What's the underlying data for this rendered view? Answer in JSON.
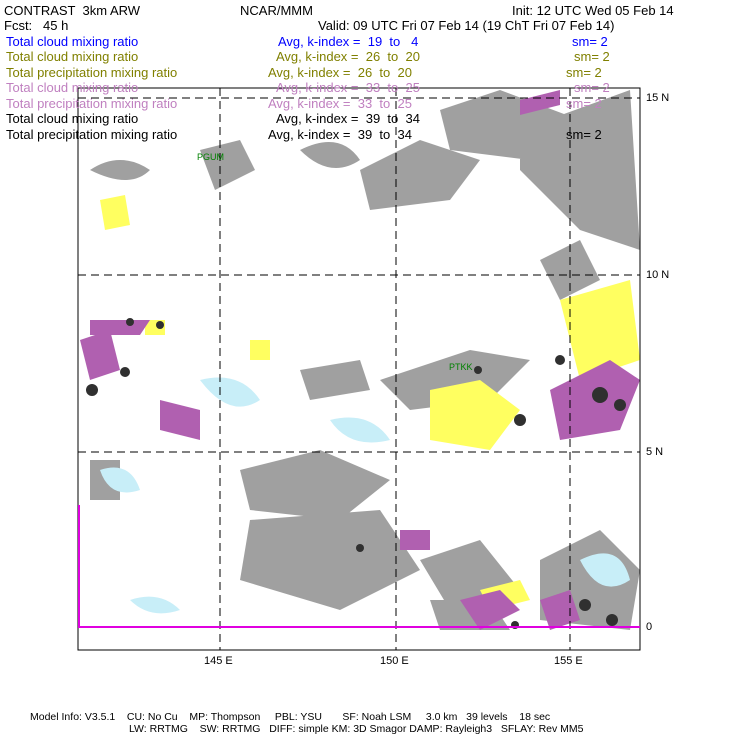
{
  "header": {
    "title": "CONTRAST  3km ARW",
    "org": "NCAR/MMM",
    "init": "Init: 12 UTC Wed 05 Feb 14",
    "fcst": "Fcst:   45 h",
    "valid": "Valid: 09 UTC Fri 07 Feb 14 (19 ChT Fri 07 Feb 14)"
  },
  "fields": [
    {
      "name": "Total cloud mixing ratio",
      "range": "Avg, k-index =  19  to   4",
      "sm": "sm= 2",
      "color": "#0000ff"
    },
    {
      "name": "Total cloud mixing ratio",
      "range": "Avg, k-index =  26  to  20",
      "sm": "sm= 2",
      "color": "#808000"
    },
    {
      "name": "Total precipitation mixing ratio",
      "range": "Avg, k-index =  26  to  20",
      "sm": "sm= 2",
      "color": "#808000"
    },
    {
      "name": "Total cloud mixing ratio",
      "range": "Avg, k-index =  33  to  25",
      "sm": "sm= 2",
      "color": "#c080c0"
    },
    {
      "name": "Total precipitation mixing ratio",
      "range": "Avg, k-index =  33  to  25",
      "sm": "sm= 2",
      "color": "#c080c0"
    },
    {
      "name": "Total cloud mixing ratio",
      "range": "Avg, k-index =  39  to  34",
      "sm": "",
      "color": "#000000"
    },
    {
      "name": "Total precipitation mixing ratio",
      "range": "Avg, k-index =  39  to  34",
      "sm": "sm= 2",
      "color": "#000000"
    }
  ],
  "map": {
    "lon_labels": [
      "145 E",
      "150 E",
      "155 E"
    ],
    "lat_labels": [
      "15 N",
      "10 N",
      "5 N",
      "0"
    ],
    "stations": [
      "PGUM",
      "PTKK"
    ]
  },
  "footer": {
    "line1": "Model Info: V3.5.1    CU: No Cu    MP: Thompson     PBL: YSU       SF: Noah LSM     3.0 km   39 levels    18 sec",
    "line2": "LW: RRTMG    SW: RRTMG   DIFF: simple KM: 3D Smagor DAMP: Rayleigh3   SFLAY: Rev MM5"
  }
}
